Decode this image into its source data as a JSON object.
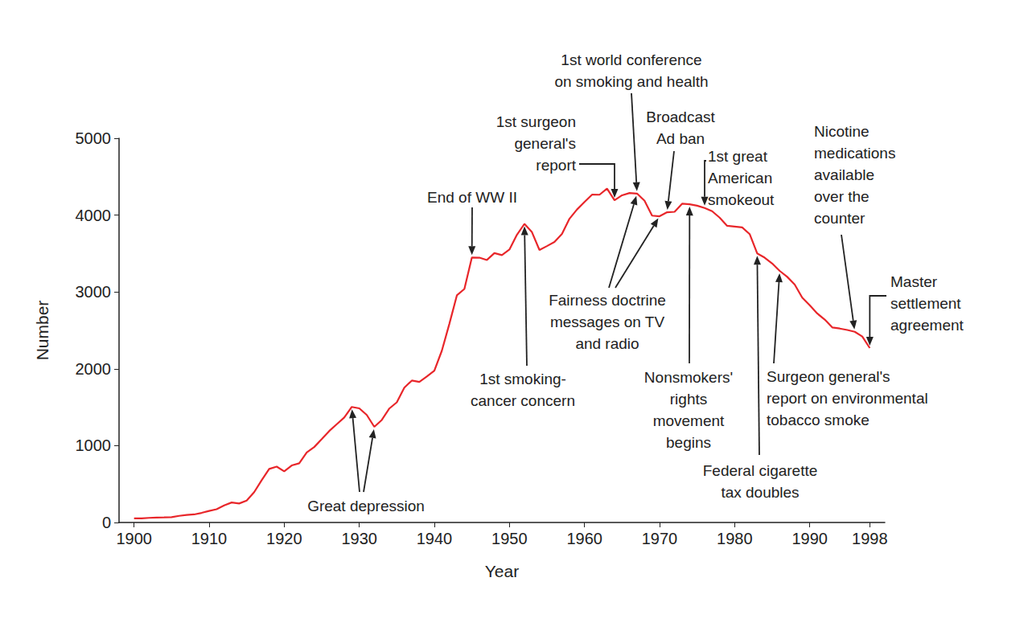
{
  "chart_data": {
    "type": "line",
    "x_label": "Year",
    "y_label": "Number",
    "color": "#e8262a",
    "grid": false,
    "xlim": [
      1898,
      2000
    ],
    "xticks": [
      1900,
      1910,
      1920,
      1930,
      1940,
      1950,
      1960,
      1970,
      1980,
      1990,
      1998
    ],
    "ylim": [
      0,
      5000
    ],
    "yticks": [
      0,
      1000,
      2000,
      3000,
      4000,
      5000
    ],
    "x": [
      1900,
      1901,
      1902,
      1903,
      1904,
      1905,
      1906,
      1907,
      1908,
      1909,
      1910,
      1911,
      1912,
      1913,
      1914,
      1915,
      1916,
      1917,
      1918,
      1919,
      1920,
      1921,
      1922,
      1923,
      1924,
      1925,
      1926,
      1927,
      1928,
      1929,
      1930,
      1931,
      1932,
      1933,
      1934,
      1935,
      1936,
      1937,
      1938,
      1939,
      1940,
      1941,
      1942,
      1943,
      1944,
      1945,
      1946,
      1947,
      1948,
      1949,
      1950,
      1951,
      1952,
      1953,
      1954,
      1955,
      1956,
      1957,
      1958,
      1959,
      1960,
      1961,
      1962,
      1963,
      1964,
      1965,
      1966,
      1967,
      1968,
      1969,
      1970,
      1971,
      1972,
      1973,
      1974,
      1975,
      1976,
      1977,
      1978,
      1979,
      1980,
      1981,
      1982,
      1983,
      1984,
      1985,
      1986,
      1987,
      1988,
      1989,
      1990,
      1991,
      1992,
      1993,
      1994,
      1995,
      1996,
      1997,
      1998
    ],
    "values": [
      54,
      53,
      60,
      64,
      66,
      70,
      86,
      99,
      105,
      125,
      151,
      173,
      223,
      260,
      247,
      285,
      395,
      551,
      697,
      727,
      665,
      742,
      770,
      911,
      982,
      1085,
      1191,
      1279,
      1366,
      1504,
      1485,
      1399,
      1245,
      1334,
      1483,
      1564,
      1754,
      1847,
      1830,
      1900,
      1976,
      2236,
      2585,
      2956,
      3039,
      3449,
      3446,
      3416,
      3505,
      3480,
      3552,
      3744,
      3886,
      3778,
      3546,
      3597,
      3650,
      3755,
      3953,
      4073,
      4171,
      4266,
      4265,
      4345,
      4194,
      4258,
      4287,
      4280,
      4186,
      3993,
      3985,
      4037,
      4043,
      4148,
      4141,
      4123,
      4092,
      4051,
      3967,
      3861,
      3851,
      3840,
      3753,
      3502,
      3446,
      3370,
      3274,
      3197,
      3096,
      2926,
      2826,
      2720,
      2641,
      2538,
      2524,
      2505,
      2482,
      2420,
      2270
    ],
    "annotations": [
      {
        "text": "Great depression",
        "points": [
          [
            1929,
            1504
          ],
          [
            1932,
            1245
          ]
        ]
      },
      {
        "text": "End of WW II",
        "points": [
          [
            1945,
            3449
          ]
        ]
      },
      {
        "text": "1st smoking-\ncancer concern",
        "points": [
          [
            1952,
            3886
          ]
        ]
      },
      {
        "text": "1st surgeon\ngeneral's\nreport",
        "points": [
          [
            1964,
            4194
          ]
        ]
      },
      {
        "text": "1st world conference\non smoking and health",
        "points": [
          [
            1967,
            4280
          ]
        ]
      },
      {
        "text": "Fairness doctrine\nmessages on TV\nand radio",
        "points": [
          [
            1967,
            4280
          ],
          [
            1970,
            3985
          ]
        ]
      },
      {
        "text": "Broadcast\nAd ban",
        "points": [
          [
            1971,
            4037
          ]
        ]
      },
      {
        "text": "1st great\nAmerican\nsmokeout",
        "points": [
          [
            1976,
            4092
          ]
        ]
      },
      {
        "text": "Nonsmokers'\nrights\nmovement\nbegins",
        "points": [
          [
            1974,
            4141
          ]
        ]
      },
      {
        "text": "Federal cigarette\ntax doubles",
        "points": [
          [
            1983,
            3502
          ]
        ]
      },
      {
        "text": "Surgeon general's\nreport on environmental\ntobacco smoke",
        "points": [
          [
            1986,
            3274
          ]
        ]
      },
      {
        "text": "Nicotine\nmedications\navailable\nover the\ncounter",
        "points": [
          [
            1996,
            2482
          ]
        ]
      },
      {
        "text": "Master\nsettlement\nagreement",
        "points": [
          [
            1998,
            2270
          ]
        ]
      }
    ]
  }
}
